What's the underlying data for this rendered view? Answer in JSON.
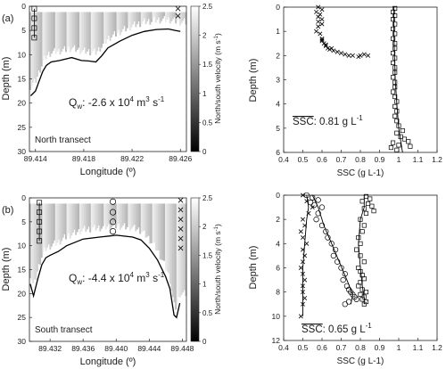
{
  "figure": {
    "panels": [
      {
        "panel_label": "(a)",
        "transect_label": "North transect",
        "discharge_label": "Q",
        "discharge_sub": "w",
        "discharge_value": ": -2.6 x 10",
        "discharge_exp": "4",
        "discharge_unit": " m",
        "discharge_unit_exp": "3",
        "discharge_unit_tail": " s",
        "discharge_unit_tail_exp": "-1",
        "ssc_label": "SSC",
        "ssc_value": ": 0.81 g L",
        "ssc_exp": "-1"
      },
      {
        "panel_label": "(b)",
        "transect_label": "South transect",
        "discharge_label": "Q",
        "discharge_sub": "w",
        "discharge_value": ": -4.4 x 10",
        "discharge_exp": "4",
        "discharge_unit": " m",
        "discharge_unit_exp": "3",
        "discharge_unit_tail": " s",
        "discharge_unit_tail_exp": "-1",
        "ssc_label": "SSC",
        "ssc_value": ": 0.65 g L",
        "ssc_exp": "-1"
      }
    ],
    "colorbar_label": "North/south velocity (m s",
    "colorbar_label_exp": "-1",
    "colorbar_label_tail": ")",
    "colorbar_ticks": [
      "0",
      "0.5",
      "1",
      "1.5",
      "2",
      "2.5"
    ]
  },
  "chart_data": [
    {
      "type": "heatmap",
      "title": "North transect",
      "xlabel": "Longitude (º)",
      "ylabel": "Depth (m)",
      "xlim": [
        89.4135,
        89.4265
      ],
      "ylim": [
        0,
        30
      ],
      "x_ticks": [
        "89.414",
        "89.418",
        "89.422",
        "89.426"
      ],
      "y_ticks": [
        "0",
        "5",
        "10",
        "15",
        "20",
        "25",
        "30"
      ],
      "colorbar_range": [
        0,
        2.5
      ],
      "annotation": "Qw: -2.6 x 10^4 m^3 s^-1",
      "bed_profile": {
        "x": [
          89.4136,
          89.414,
          89.4143,
          89.4146,
          89.4149,
          89.4153,
          89.416,
          89.417,
          89.4178,
          89.4184,
          89.419,
          89.4195,
          89.42,
          89.421,
          89.422,
          89.423,
          89.424,
          89.425,
          89.4256,
          89.426
        ],
        "y": [
          18.5,
          17.5,
          15.5,
          13.5,
          12.2,
          11.5,
          11.2,
          10.6,
          11.2,
          11.3,
          11.5,
          10.2,
          8.6,
          7.2,
          6.0,
          5.2,
          4.8,
          4.7,
          5.0,
          5.2
        ]
      },
      "profile_stations": [
        {
          "marker": "square",
          "x": 89.4139,
          "depths": [
            0.5,
            2.5,
            4.5,
            6.5
          ]
        },
        {
          "marker": "x",
          "x": 89.4258,
          "depths": [
            0.5,
            2.0
          ]
        }
      ]
    },
    {
      "type": "scatter",
      "xlabel": "SSC (g L-1)",
      "ylabel": "Depth (m)",
      "xlim": [
        0.4,
        1.2
      ],
      "ylim": [
        0,
        6
      ],
      "y_inverted": true,
      "x_ticks": [
        "0.4",
        "0.5",
        "0.6",
        "0.7",
        "0.8",
        "0.9",
        "1",
        "1.1",
        "1.2"
      ],
      "y_ticks": [
        "0",
        "1",
        "2",
        "3",
        "4",
        "5",
        "6"
      ],
      "annotation": "SSC: 0.81 g L-1",
      "series": [
        {
          "marker": "square",
          "x": [
            0.98,
            0.97,
            0.98,
            0.97,
            0.98,
            0.97,
            0.98,
            0.97,
            0.98,
            0.98,
            0.97,
            0.98,
            0.97,
            0.98,
            0.98,
            0.97,
            0.98,
            0.98,
            0.97,
            0.98,
            0.99,
            0.98,
            0.99,
            0.98,
            0.99,
            1.0,
            1.02,
            0.99,
            1.01,
            1.03,
            1.05,
            0.97,
            1.0,
            1.06,
            0.96,
            0.99
          ],
          "y": [
            0.05,
            0.2,
            0.35,
            0.5,
            0.7,
            0.9,
            1.1,
            1.3,
            1.5,
            1.7,
            1.9,
            2.1,
            2.3,
            2.5,
            2.7,
            2.9,
            3.1,
            3.3,
            3.5,
            3.7,
            3.9,
            4.1,
            4.3,
            4.5,
            4.7,
            4.9,
            5.1,
            5.2,
            5.35,
            5.45,
            5.55,
            5.6,
            5.7,
            5.75,
            5.8,
            5.9
          ]
        },
        {
          "marker": "x",
          "x": [
            0.58,
            0.6,
            0.57,
            0.59,
            0.58,
            0.6,
            0.58,
            0.6,
            0.58,
            0.57,
            0.59,
            0.6,
            0.6,
            0.61,
            0.62,
            0.63,
            0.64,
            0.66,
            0.68,
            0.7,
            0.72,
            0.74,
            0.76,
            0.79,
            0.8,
            0.82,
            0.84,
            0.6,
            0.62,
            0.65
          ],
          "y": [
            0.0,
            0.1,
            0.2,
            0.3,
            0.4,
            0.5,
            0.6,
            0.7,
            0.8,
            1.0,
            1.1,
            1.3,
            1.4,
            1.5,
            1.6,
            1.7,
            1.75,
            1.8,
            1.85,
            1.9,
            1.95,
            2.0,
            2.0,
            2.05,
            2.0,
            1.95,
            2.0,
            1.35,
            1.55,
            1.7
          ]
        }
      ],
      "fit_curve": {
        "x": [
          0.975,
          0.975,
          0.978,
          0.982,
          0.99,
          1.0,
          1.01,
          1.02
        ],
        "y": [
          0,
          1,
          2,
          3,
          4,
          5,
          5.5,
          6
        ]
      }
    },
    {
      "type": "heatmap",
      "title": "South transect",
      "xlabel": "Longitude (º)",
      "ylabel": "Depth (m)",
      "xlim": [
        89.4295,
        89.4485
      ],
      "ylim": [
        0,
        30
      ],
      "x_ticks": [
        "89.432",
        "89.436",
        "89.440",
        "89.444",
        "89.448"
      ],
      "y_ticks": [
        "0",
        "5",
        "10",
        "15",
        "20",
        "25",
        "30"
      ],
      "colorbar_range": [
        0,
        2.5
      ],
      "annotation": "Qw: -4.4 x 10^4 m^3 s^-1",
      "bed_profile": {
        "x": [
          89.4296,
          89.43,
          89.4305,
          89.431,
          89.4315,
          89.432,
          89.433,
          89.434,
          89.436,
          89.438,
          89.44,
          89.442,
          89.443,
          89.444,
          89.445,
          89.446,
          89.4465,
          89.447,
          89.4473,
          89.4477
        ],
        "y": [
          18.0,
          20.5,
          17.0,
          14.0,
          12.5,
          12.0,
          11.2,
          10.0,
          8.6,
          8.2,
          7.8,
          8.2,
          8.8,
          10.5,
          13.0,
          16.5,
          19.0,
          24.5,
          25.0,
          22.0
        ]
      },
      "profile_stations": [
        {
          "marker": "square",
          "x": 89.4307,
          "depths": [
            1,
            3,
            5,
            7,
            9
          ]
        },
        {
          "marker": "circle",
          "x": 89.4396,
          "depths": [
            0.8,
            3,
            5,
            7
          ]
        },
        {
          "marker": "x",
          "x": 89.4478,
          "depths": [
            0.5,
            2.5,
            4.5,
            6.5,
            8.5,
            10.5
          ]
        }
      ]
    },
    {
      "type": "scatter",
      "xlabel": "SSC (g L-1)",
      "ylabel": "Depth (m)",
      "xlim": [
        0.4,
        1.2
      ],
      "ylim": [
        0,
        12
      ],
      "y_inverted": true,
      "x_ticks": [
        "0.4",
        "0.5",
        "0.6",
        "0.7",
        "0.8",
        "0.9",
        "1",
        "1.1",
        "1.2"
      ],
      "y_ticks": [
        "0",
        "2",
        "4",
        "6",
        "8",
        "10",
        "12"
      ],
      "annotation": "SSC: 0.65 g L-1",
      "series": [
        {
          "marker": "square",
          "x": [
            0.83,
            0.85,
            0.81,
            0.84,
            0.86,
            0.82,
            0.87,
            0.83,
            0.8,
            0.82,
            0.81,
            0.79,
            0.8,
            0.78,
            0.8,
            0.82,
            0.79,
            0.8,
            0.81,
            0.82,
            0.8,
            0.79,
            0.81,
            0.83,
            0.8,
            0.82,
            0.81,
            0.83,
            0.82
          ],
          "y": [
            0.1,
            0.3,
            0.5,
            0.7,
            0.9,
            1.1,
            1.3,
            1.5,
            2.0,
            2.5,
            3.0,
            3.5,
            4.0,
            4.5,
            5.0,
            5.5,
            6.0,
            6.3,
            6.6,
            6.9,
            7.2,
            7.5,
            7.8,
            8.0,
            8.2,
            8.4,
            8.6,
            8.8,
            9.0
          ]
        },
        {
          "marker": "circle",
          "x": [
            0.52,
            0.55,
            0.58,
            0.54,
            0.56,
            0.6,
            0.58,
            0.57,
            0.6,
            0.62,
            0.63,
            0.65,
            0.67,
            0.66,
            0.68,
            0.7,
            0.72,
            0.71,
            0.73,
            0.74,
            0.75,
            0.76,
            0.77,
            0.78,
            0.74,
            0.72
          ],
          "y": [
            0.0,
            0.2,
            0.4,
            0.6,
            0.8,
            1.0,
            1.5,
            2.0,
            2.5,
            3.0,
            3.5,
            4.0,
            4.5,
            5.0,
            5.5,
            6.0,
            6.5,
            7.0,
            7.5,
            7.8,
            8.0,
            8.2,
            8.4,
            8.6,
            8.8,
            9.0
          ]
        },
        {
          "marker": "x",
          "x": [
            0.5,
            0.52,
            0.55,
            0.53,
            0.5,
            0.51,
            0.49,
            0.5,
            0.52,
            0.5,
            0.51,
            0.5,
            0.49,
            0.5,
            0.51,
            0.5,
            0.5,
            0.51,
            0.5,
            0.49
          ],
          "y": [
            0.0,
            0.5,
            1.0,
            1.5,
            2.0,
            2.5,
            3.0,
            3.5,
            4.0,
            4.5,
            5.0,
            5.5,
            6.0,
            6.5,
            7.0,
            7.5,
            8.0,
            8.5,
            9.0,
            10.0
          ]
        }
      ],
      "fit_curves": [
        {
          "x": [
            0.82,
            0.82,
            0.8,
            0.79,
            0.8,
            0.81,
            0.82,
            0.82
          ],
          "y": [
            0,
            1,
            2,
            4,
            6,
            7.5,
            8.5,
            9
          ]
        },
        {
          "x": [
            0.55,
            0.58,
            0.61,
            0.65,
            0.69,
            0.73,
            0.76,
            0.75
          ],
          "y": [
            0,
            1,
            2.5,
            4,
            5.5,
            7,
            8.2,
            9
          ]
        },
        {
          "x": [
            0.52,
            0.53,
            0.52,
            0.51,
            0.5,
            0.5,
            0.5,
            0.5
          ],
          "y": [
            0,
            1,
            2,
            4,
            6,
            8,
            9,
            10
          ]
        }
      ]
    }
  ]
}
